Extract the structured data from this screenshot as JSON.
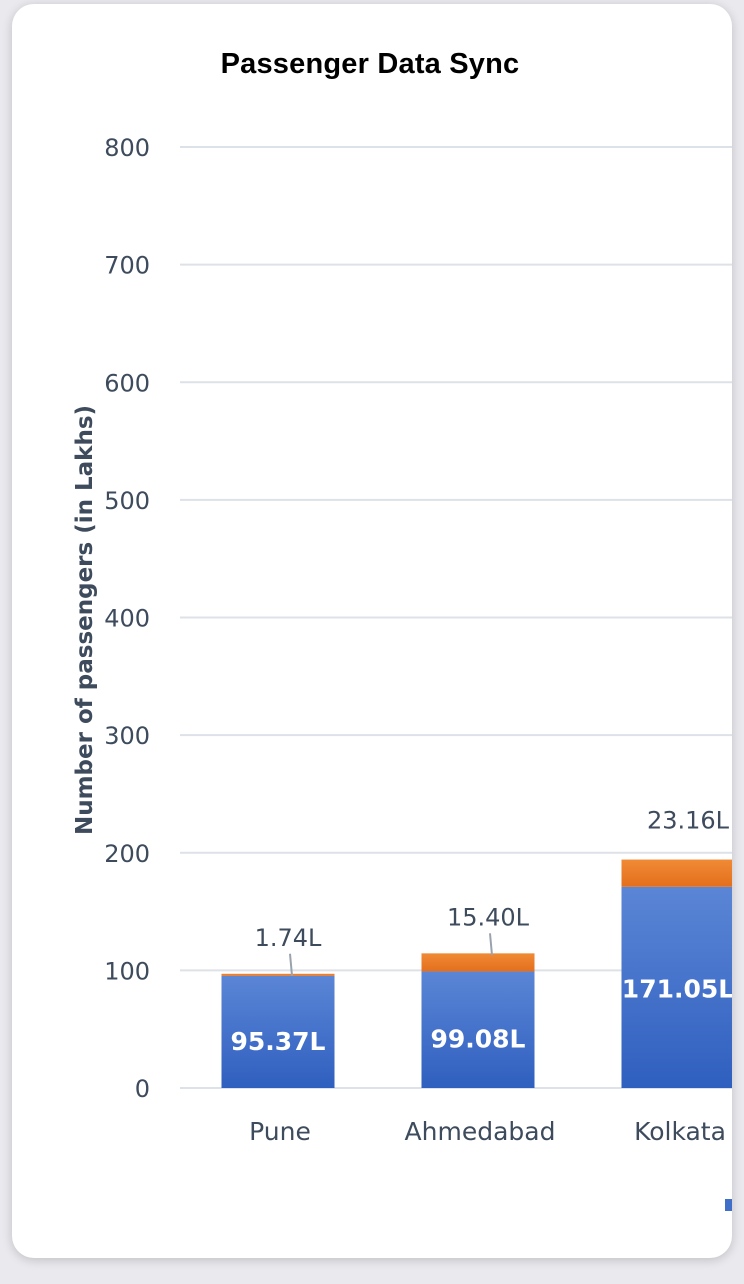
{
  "window": {
    "title": "Passenger Data Sync"
  },
  "chart_data": {
    "type": "bar",
    "stacked": true,
    "title": "",
    "xlabel": "",
    "ylabel": "Number of passengers (in Lakhs)",
    "ylim": [
      0,
      800
    ],
    "yticks": [
      0,
      100,
      200,
      300,
      400,
      500,
      600,
      700,
      800
    ],
    "grid": true,
    "categories": [
      "Pune",
      "Ahmedabad",
      "Kolkata"
    ],
    "series": [
      {
        "values": [
          95.37,
          99.08,
          171.05
        ],
        "labels": [
          "95.37L",
          "99.08L",
          "171.05L"
        ],
        "color": "#3f6fc9"
      },
      {
        "values": [
          1.74,
          15.4,
          23.16
        ],
        "labels": [
          "1.74L",
          "15.40L",
          "23.16L"
        ],
        "color": "#ec7a26"
      }
    ]
  }
}
